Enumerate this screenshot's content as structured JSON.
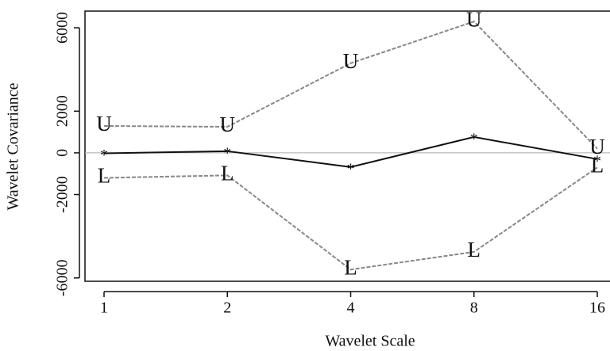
{
  "chart_data": {
    "type": "line",
    "x_label": "Wavelet Scale",
    "y_label": "Wavelet Covariance",
    "categories": [
      "1",
      "2",
      "4",
      "8",
      "16"
    ],
    "series": [
      {
        "marker": "U",
        "color": "#888888",
        "dashed": true,
        "values": [
          1290,
          1250,
          4300,
          6300,
          200
        ]
      },
      {
        "marker": "*",
        "color": "#111111",
        "dashed": false,
        "values": [
          -20,
          80,
          -680,
          760,
          -300
        ]
      },
      {
        "marker": "L",
        "color": "#888888",
        "dashed": true,
        "values": [
          -1200,
          -1080,
          -5600,
          -4750,
          -700
        ]
      }
    ],
    "hline": 0,
    "hline_color": "#aaaaaa",
    "ylim": [
      -6160,
      6800
    ],
    "yticks": [
      -6000,
      -2000,
      0,
      2000,
      6000
    ]
  }
}
